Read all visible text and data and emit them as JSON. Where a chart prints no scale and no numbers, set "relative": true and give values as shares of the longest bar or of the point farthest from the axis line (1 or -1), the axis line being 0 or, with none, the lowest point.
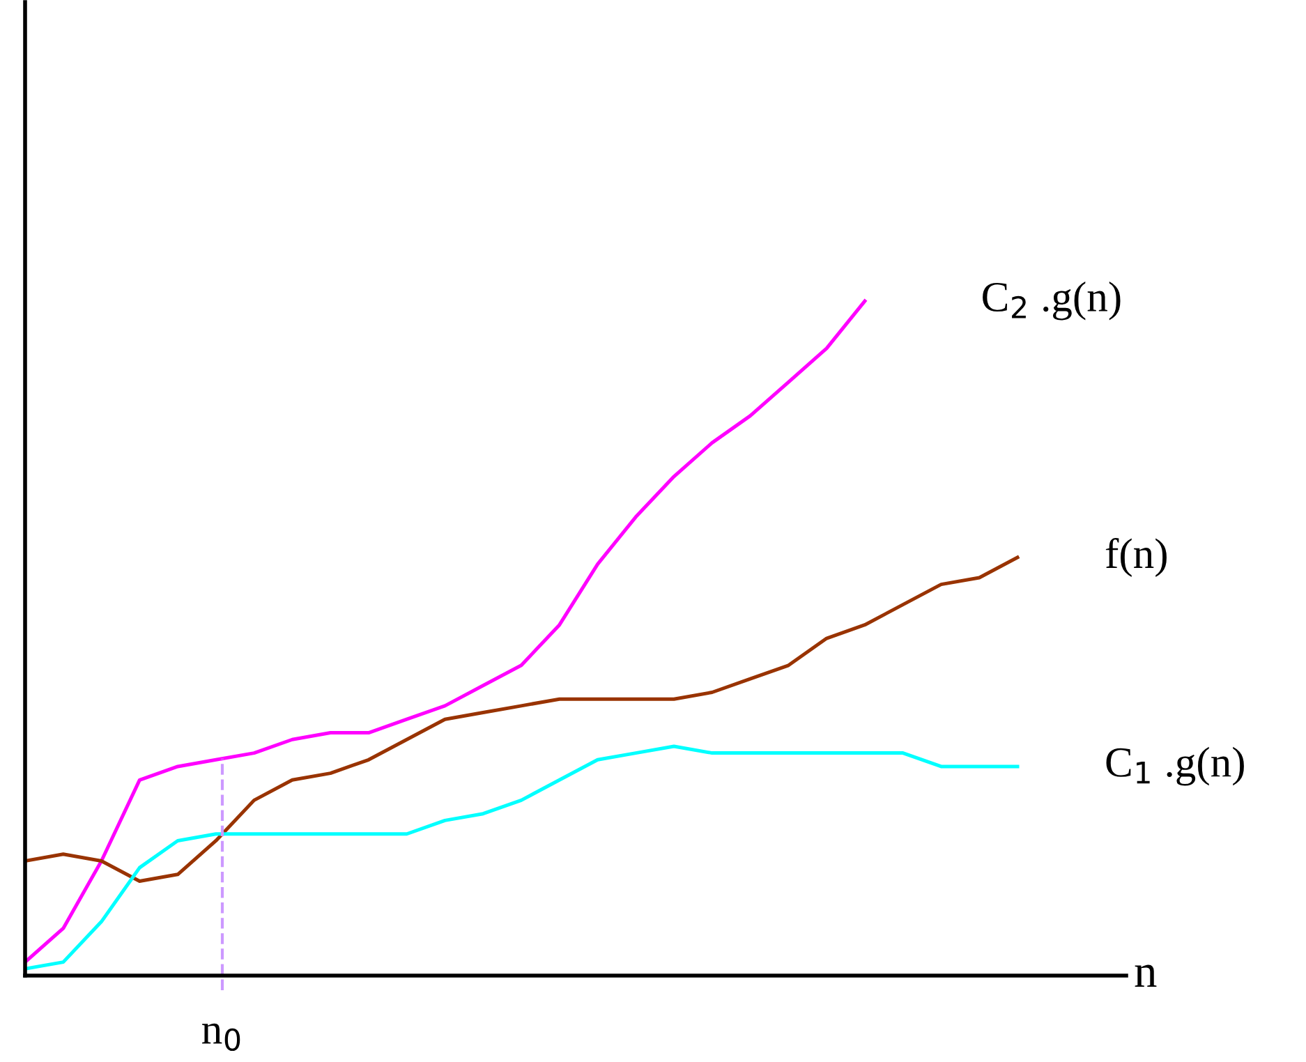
{
  "chart_data": {
    "type": "line",
    "relative": true,
    "xlabel": "n",
    "legend": false,
    "marker": "none",
    "line_style": "solid",
    "categories": [
      null,
      null,
      null,
      null,
      null,
      null,
      null,
      null,
      null,
      null,
      null,
      null,
      null,
      null,
      null,
      null,
      null,
      null,
      null,
      null,
      null,
      null,
      null,
      null,
      null,
      null,
      null
    ],
    "series": [
      {
        "name": "C$_{2}$ .g(n)",
        "color": "#ff00ff",
        "values": [
          0.02,
          0.07,
          0.17,
          0.29,
          0.31,
          0.32,
          0.33,
          0.35,
          0.36,
          0.36,
          0.38,
          0.4,
          0.43,
          0.46,
          0.52,
          0.61,
          0.68,
          0.74,
          0.79,
          0.83,
          0.88,
          0.93,
          1.0,
          null,
          null,
          null,
          null
        ]
      },
      {
        "name": "f(n)",
        "color": "#993300",
        "values": [
          0.17,
          0.18,
          0.17,
          0.14,
          0.15,
          0.2,
          0.26,
          0.29,
          0.3,
          0.32,
          0.35,
          0.38,
          0.39,
          0.4,
          0.41,
          0.41,
          0.41,
          0.41,
          0.42,
          0.44,
          0.46,
          0.5,
          0.52,
          0.55,
          0.58,
          0.59,
          0.62
        ]
      },
      {
        "name": "C$_{1}$ .g(n)",
        "color": "#00ffff",
        "values": [
          0.01,
          0.02,
          0.08,
          0.16,
          0.2,
          0.21,
          0.21,
          0.21,
          0.21,
          0.21,
          0.21,
          0.23,
          0.24,
          0.26,
          0.29,
          0.32,
          0.33,
          0.34,
          0.33,
          0.33,
          0.33,
          0.33,
          0.33,
          0.33,
          0.31,
          0.31,
          0.31
        ]
      }
    ],
    "annotations": [
      "n$_{0}$"
    ]
  }
}
